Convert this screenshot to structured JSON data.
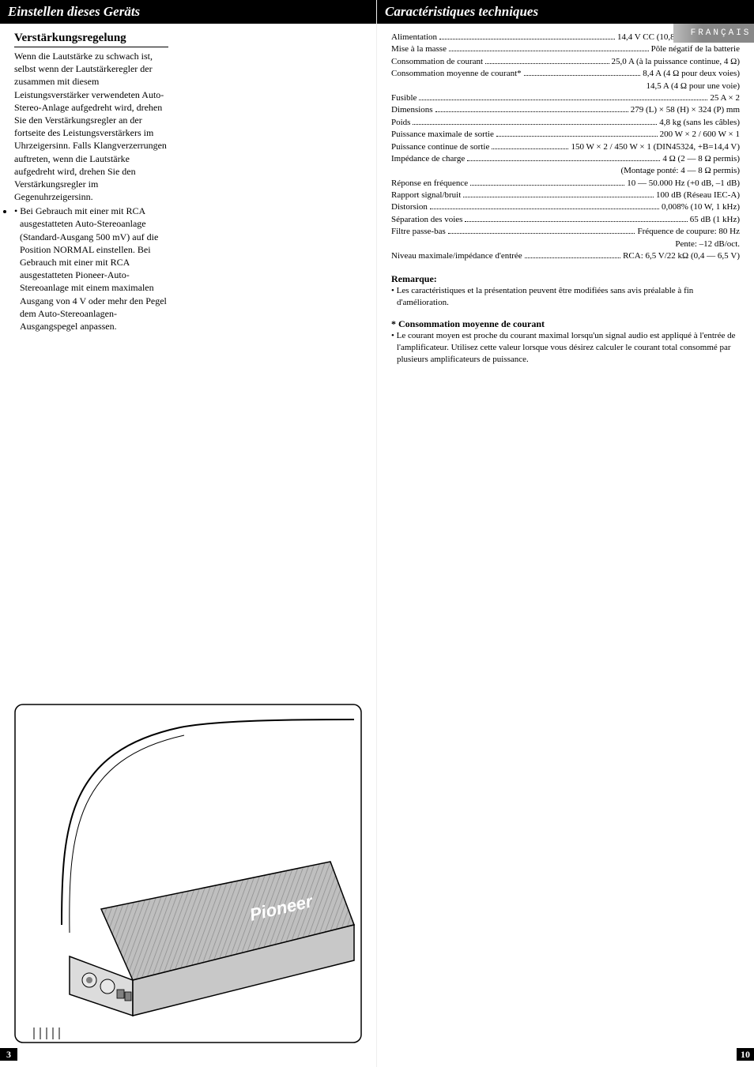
{
  "left": {
    "header": "Einstellen dieses Geräts",
    "section_title": "Verstärkungsregelung",
    "paragraph": "Wenn die Lautstärke zu schwach ist, selbst wenn der Lautstärkeregler der zusammen mit diesem Leistungsverstärker verwendeten Auto-Stereo-Anlage aufgedreht wird, drehen Sie den Verstärkungsregler an der fortseite des Leistungsverstärkers im Uhrzeigersinn. Falls Klangverzerrungen auftreten, wenn die Lautstärke aufgedreht wird, drehen Sie den Verstärkungsregler im Gegenuhrzeigersinn.",
    "bullet": "Bei Gebrauch mit einer mit RCA ausgestatteten Auto-Stereoanlage (Standard-Ausgang 500 mV) auf die Position NORMAL einstellen. Bei Gebrauch mit einer mit RCA ausgestatteten Pioneer-Auto-Stereoanlage mit einem maximalen Ausgang von 4 V oder mehr den Pegel dem Auto-Stereoanlagen-Ausgangspegel anpassen.",
    "page_number": "3",
    "logo_text": "Pioneer"
  },
  "right": {
    "header": "Caractéristiques techniques",
    "lang_tab": "FRANÇAIS",
    "page_number": "10",
    "specs": [
      {
        "label": "Alimentation",
        "value": "14,4 V CC (10,8 — 15,1 V permis)"
      },
      {
        "label": "Mise à la masse",
        "value": "Pôle négatif de la batterie"
      },
      {
        "label": "Consommation de courant",
        "value": "25,0 A (à la puissance continue, 4 Ω)"
      },
      {
        "label": "Consommation moyenne de courant*",
        "value": "8,4 A (4 Ω pour deux voies)"
      },
      {
        "cont": "14,5 A (4 Ω pour une voie)"
      },
      {
        "label": "Fusible",
        "value": "25 A × 2"
      },
      {
        "label": "Dimensions",
        "value": "279 (L) × 58 (H) × 324 (P) mm"
      },
      {
        "label": "Poids",
        "value": "4,8 kg (sans les câbles)"
      },
      {
        "label": "Puissance maximale de sortie",
        "value": "200 W × 2 / 600 W × 1"
      },
      {
        "label": "Puissance continue de sortie",
        "value": "150 W × 2 / 450 W × 1 (DIN45324, +B=14,4 V)"
      },
      {
        "label": "Impédance de charge",
        "value": "4 Ω (2 — 8 Ω permis)"
      },
      {
        "cont": "(Montage ponté: 4 — 8 Ω permis)"
      },
      {
        "label": "Réponse en fréquence",
        "value": "10 — 50.000 Hz (+0 dB, –1 dB)"
      },
      {
        "label": "Rapport signal/bruit",
        "value": "100 dB (Réseau IEC-A)"
      },
      {
        "label": "Distorsion",
        "value": "0,008% (10 W, 1 kHz)"
      },
      {
        "label": "Séparation des voies",
        "value": "65 dB (1 kHz)"
      },
      {
        "label": "Filtre passe-bas",
        "value": "Fréquence de coupure: 80 Hz"
      },
      {
        "cont": "Pente: –12 dB/oct."
      },
      {
        "label": "Niveau maximale/impédance d'entrée",
        "value": "RCA: 6,5 V/22 kΩ (0,4 — 6,5 V)"
      }
    ],
    "remark_head": "Remarque:",
    "remark_bullet": "Les caractéristiques et la présentation peuvent être modifiées sans avis préalable à fin d'amélioration.",
    "footnote_head": "* Consommation moyenne de courant",
    "footnote_bullet": "Le courant moyen est proche du courant maximal lorsqu'un signal audio est appliqué à l'entrée de l'amplificateur. Utilisez cette valeur lorsque vous désirez calculer le courant total consommé par plusieurs amplificateurs de puissance."
  }
}
